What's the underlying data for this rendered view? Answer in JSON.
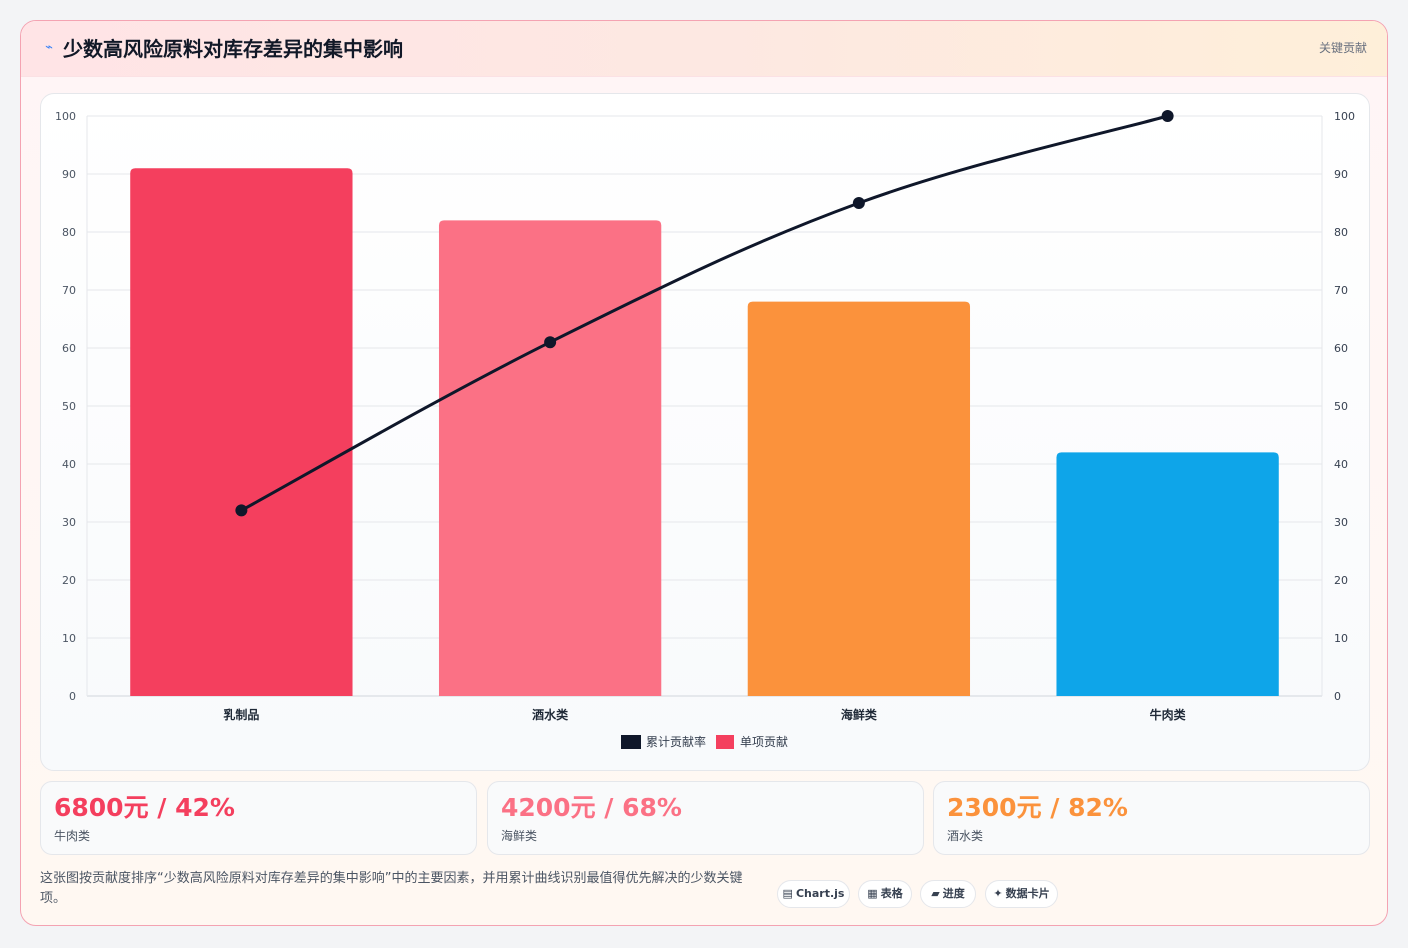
{
  "header": {
    "icon": "lightning-icon",
    "title": "少数高风险原料对库存差异的集中影响",
    "badge": "关键贡献"
  },
  "chart_data": {
    "type": "bar",
    "categories": [
      "乳制品",
      "酒水类",
      "海鲜类",
      "牛肉类"
    ],
    "series": [
      {
        "name": "单项贡献",
        "type": "bar",
        "values": [
          91,
          82,
          68,
          42
        ],
        "colors": [
          "#f43f5e",
          "#fb7185",
          "#fb923c",
          "#0ea5e9"
        ]
      },
      {
        "name": "累计贡献率",
        "type": "line",
        "values": [
          32,
          61,
          85,
          100
        ],
        "color": "#0f172a"
      }
    ],
    "ylim": [
      0,
      100
    ],
    "y2lim": [
      0,
      100
    ],
    "yticks": [
      0,
      10,
      20,
      30,
      40,
      50,
      60,
      70,
      80,
      90,
      100
    ],
    "legend": {
      "position": "bottom"
    },
    "grid": true,
    "title": "",
    "xlabel": "",
    "ylabel": ""
  },
  "kpis": [
    {
      "value": "6800元 / 42%",
      "label": "牛肉类",
      "color": "#f43f5e"
    },
    {
      "value": "4200元 / 68%",
      "label": "海鲜类",
      "color": "#fb7185"
    },
    {
      "value": "2300元 / 82%",
      "label": "酒水类",
      "color": "#fb923c"
    }
  ],
  "footer": {
    "description": "这张图按贡献度排序“少数高风险原料对库存差异的集中影响”中的主要因素，并用累计曲线识别最值得优先解决的少数关键项。",
    "chips": [
      {
        "icon": "chart-icon",
        "glyph": "▤",
        "label": "Chart.js"
      },
      {
        "icon": "table-icon",
        "glyph": "▦",
        "label": "表格"
      },
      {
        "icon": "progress-icon",
        "glyph": "▰",
        "label": "进度"
      },
      {
        "icon": "sparkle-icon",
        "glyph": "✦",
        "label": "数据卡片"
      }
    ]
  }
}
